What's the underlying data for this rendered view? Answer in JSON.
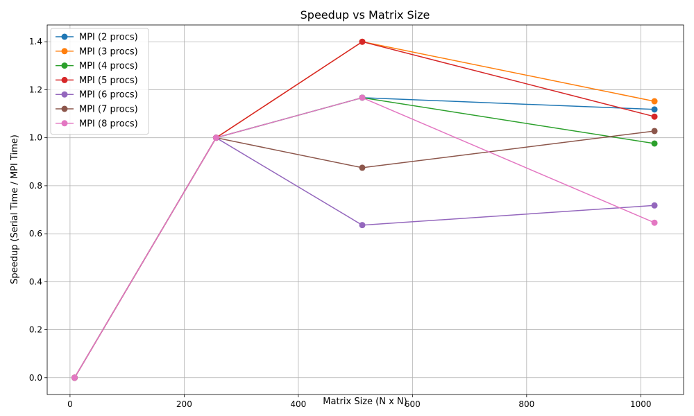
{
  "chart_data": {
    "type": "line",
    "title": "Speedup vs Matrix Size",
    "xlabel": "Matrix Size (N x N)",
    "ylabel": "Speedup (Serial Time / MPI Time)",
    "xlim": [
      -40,
      1075
    ],
    "ylim": [
      -0.07,
      1.47
    ],
    "xticks": [
      0,
      200,
      400,
      600,
      800,
      1000
    ],
    "yticks": [
      0.0,
      0.2,
      0.4,
      0.6,
      0.8,
      1.0,
      1.2,
      1.4
    ],
    "xtick_labels": [
      "0",
      "200",
      "400",
      "600",
      "800",
      "1000"
    ],
    "ytick_labels": [
      "0.0",
      "0.2",
      "0.4",
      "0.6",
      "0.8",
      "1.0",
      "1.2",
      "1.4"
    ],
    "grid": true,
    "legend_position": "upper-left",
    "series": [
      {
        "name": "MPI (2 procs)",
        "color": "#1f77b4",
        "x": [
          8,
          256,
          512,
          1024
        ],
        "y": [
          0.0,
          1.0,
          1.167,
          1.118
        ]
      },
      {
        "name": "MPI (3 procs)",
        "color": "#ff7f0e",
        "x": [
          8,
          256,
          512,
          1024
        ],
        "y": [
          0.0,
          1.0,
          1.4,
          1.152
        ]
      },
      {
        "name": "MPI (4 procs)",
        "color": "#2ca02c",
        "x": [
          8,
          256,
          512,
          1024
        ],
        "y": [
          0.0,
          1.0,
          1.167,
          0.976
        ]
      },
      {
        "name": "MPI (5 procs)",
        "color": "#d62728",
        "x": [
          8,
          256,
          512,
          1024
        ],
        "y": [
          0.0,
          1.0,
          1.4,
          1.088
        ]
      },
      {
        "name": "MPI (6 procs)",
        "color": "#9467bd",
        "x": [
          8,
          256,
          512,
          1024
        ],
        "y": [
          0.0,
          1.0,
          0.636,
          0.718
        ]
      },
      {
        "name": "MPI (7 procs)",
        "color": "#8c564b",
        "x": [
          8,
          256,
          512,
          1024
        ],
        "y": [
          0.0,
          1.0,
          0.875,
          1.028
        ]
      },
      {
        "name": "MPI (8 procs)",
        "color": "#e377c2",
        "x": [
          8,
          256,
          512,
          1024
        ],
        "y": [
          0.0,
          1.0,
          1.167,
          0.646
        ]
      }
    ]
  }
}
